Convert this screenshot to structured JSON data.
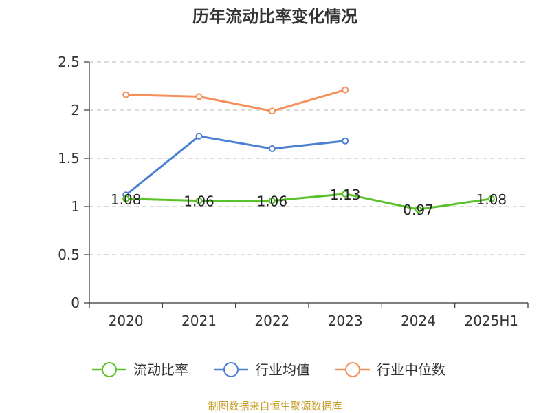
{
  "chart_data": {
    "type": "line",
    "title": "历年流动比率变化情况",
    "categories": [
      "2020",
      "2021",
      "2022",
      "2023",
      "2024",
      "2025H1"
    ],
    "yticks": [
      "0",
      "0.5",
      "1",
      "1.5",
      "2",
      "2.5"
    ],
    "ylim": [
      0,
      2.5
    ],
    "grid": true,
    "legend_position": "bottom",
    "series": [
      {
        "name": "流动比率",
        "color": "#5ac229",
        "values": [
          1.08,
          1.06,
          1.06,
          1.13,
          0.97,
          1.08
        ],
        "labels": [
          "1.08",
          "1.06",
          "1.06",
          "1.13",
          "0.97",
          "1.08"
        ]
      },
      {
        "name": "行业均值",
        "color": "#4a7fd4",
        "values": [
          1.12,
          1.73,
          1.6,
          1.68,
          null,
          null
        ]
      },
      {
        "name": "行业中位数",
        "color": "#f5905a",
        "values": [
          2.16,
          2.14,
          1.99,
          2.21,
          null,
          null
        ]
      }
    ],
    "source": "制图数据来自恒生聚源数据库"
  }
}
